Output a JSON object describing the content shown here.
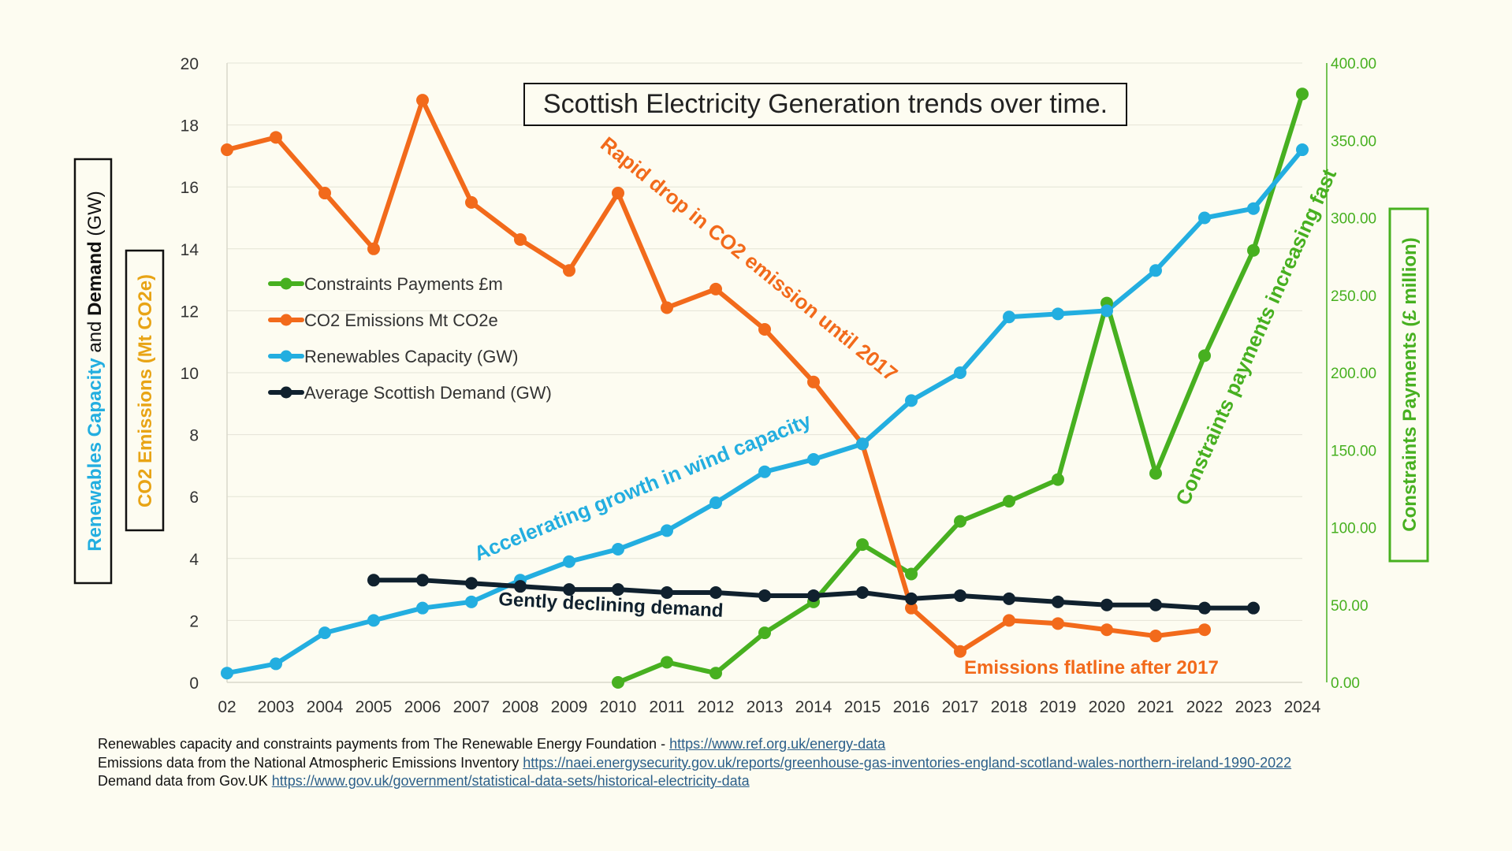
{
  "chart_data": {
    "type": "line",
    "title": "Scottish Electricity Generation trends over time.",
    "categories": [
      "2002",
      "2003",
      "2004",
      "2005",
      "2006",
      "2007",
      "2008",
      "2009",
      "2010",
      "2011",
      "2012",
      "2013",
      "2014",
      "2015",
      "2016",
      "2017",
      "2018",
      "2019",
      "2020",
      "2021",
      "2022",
      "2023",
      "2024"
    ],
    "x_tick_labels": [
      "02",
      "2003",
      "2004",
      "2005",
      "2006",
      "2007",
      "2008",
      "2009",
      "2010",
      "2011",
      "2012",
      "2013",
      "2014",
      "2015",
      "2016",
      "2017",
      "2018",
      "2019",
      "2020",
      "2021",
      "2022",
      "2023",
      "2024"
    ],
    "y_left": {
      "ylim": [
        0,
        20
      ],
      "ticks": [
        "0",
        "2",
        "4",
        "6",
        "8",
        "10",
        "12",
        "14",
        "16",
        "18",
        "20"
      ]
    },
    "y_right": {
      "ylim": [
        0,
        400
      ],
      "ticks": [
        "0.00",
        "50.00",
        "100.00",
        "150.00",
        "200.00",
        "250.00",
        "300.00",
        "350.00",
        "400.00"
      ]
    },
    "left_axis_label": {
      "part1": "Renewables Capacity",
      "part2": " and ",
      "part3": "Demand",
      "part4": " (GW)"
    },
    "left_axis_label2": "CO2 Emissions (Mt CO2e)",
    "right_axis_label": "Constraints Payments (£ million)",
    "series": [
      {
        "name": "Constraints Payments £m",
        "color": "#47b020",
        "axis": "right",
        "values": [
          null,
          null,
          null,
          null,
          null,
          null,
          null,
          null,
          0,
          13,
          6,
          32,
          52,
          89,
          70,
          104,
          117,
          131,
          245,
          135,
          211,
          279,
          380
        ]
      },
      {
        "name": "CO2 Emissions Mt CO2e",
        "color": "#f26a1b",
        "axis": "left",
        "values": [
          17.2,
          17.6,
          15.8,
          14.0,
          18.8,
          15.5,
          14.3,
          13.3,
          15.8,
          12.1,
          12.7,
          11.4,
          9.7,
          7.7,
          2.4,
          1.0,
          2.0,
          1.9,
          1.7,
          1.5,
          1.7,
          null,
          null
        ]
      },
      {
        "name": "Renewables Capacity (GW)",
        "color": "#23aee0",
        "axis": "left",
        "values": [
          0.3,
          0.6,
          1.6,
          2.0,
          2.4,
          2.6,
          3.3,
          3.9,
          4.3,
          4.9,
          5.8,
          6.8,
          7.2,
          7.7,
          9.1,
          10.0,
          11.8,
          11.9,
          12.0,
          13.3,
          15.0,
          15.3,
          17.2
        ]
      },
      {
        "name": "Average Scottish Demand (GW)",
        "color": "#10212e",
        "axis": "left",
        "values": [
          null,
          null,
          null,
          3.3,
          3.3,
          3.2,
          3.1,
          3.0,
          3.0,
          2.9,
          2.9,
          2.8,
          2.8,
          2.9,
          2.7,
          2.8,
          2.7,
          2.6,
          2.5,
          2.5,
          2.4,
          2.4,
          null
        ]
      }
    ],
    "annotations": [
      {
        "text": "Rapid drop in CO2 emission until 2017",
        "color": "#f26a1b"
      },
      {
        "text": "Accelerating growth in wind capacity",
        "color": "#23aee0"
      },
      {
        "text": "Constraints payments increasing fast",
        "color": "#47b020"
      },
      {
        "text": "Gently declining demand",
        "color": "#10212e"
      },
      {
        "text": "Emissions flatline after 2017",
        "color": "#f26a1b"
      }
    ],
    "legend_placement": "left-middle",
    "grid": true
  },
  "sources": {
    "line1_text": "Renewables capacity and constraints payments from The Renewable Energy Foundation - ",
    "line1_link": "https://www.ref.org.uk/energy-data",
    "line2_text": "Emissions data from the National Atmospheric Emissions Inventory ",
    "line2_link": "https://naei.energysecurity.gov.uk/reports/greenhouse-gas-inventories-england-scotland-wales-northern-ireland-1990-2022",
    "line3_text": "Demand data from Gov.UK   ",
    "line3_link": "https://www.gov.uk/government/statistical-data-sets/historical-electricity-data"
  }
}
